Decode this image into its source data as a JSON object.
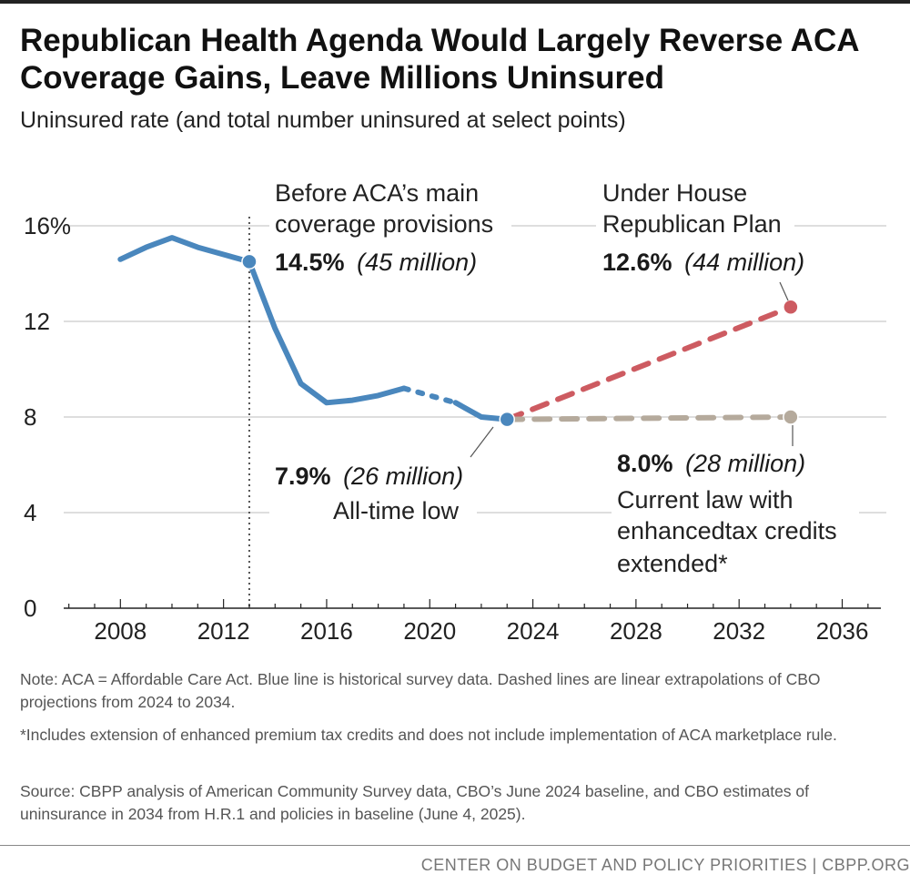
{
  "chart_data": {
    "type": "line",
    "title": "Republican Health Agenda Would Largely Reverse ACA Coverage Gains, Leave Millions Uninsured",
    "subtitle": "Uninsured rate (and total number uninsured at select points)",
    "xlabel": "",
    "ylabel": "",
    "xlim": [
      2005.8,
      2037.5
    ],
    "ylim": [
      0,
      16
    ],
    "yticks": [
      0,
      4,
      8,
      12,
      16
    ],
    "ytick_labels": [
      "0",
      "4",
      "8",
      "12",
      "16%"
    ],
    "xticks_labeled": [
      2008,
      2012,
      2016,
      2020,
      2024,
      2028,
      2032,
      2036
    ],
    "grid": true,
    "colors": {
      "historical": "#4a87bd",
      "house_plan": "#cd5b61",
      "current_law": "#b5aa9c",
      "grid": "#bdbdbd",
      "reference": "#555555"
    },
    "series": [
      {
        "name": "Historical survey data",
        "style": "solid",
        "x": [
          2008,
          2009,
          2010,
          2011,
          2012,
          2013,
          2014,
          2015,
          2016,
          2017,
          2018,
          2019
        ],
        "y": [
          14.6,
          15.1,
          15.5,
          15.1,
          14.8,
          14.5,
          11.7,
          9.4,
          8.6,
          8.7,
          8.9,
          9.2
        ]
      },
      {
        "name": "Historical survey data (gap year)",
        "style": "dotted",
        "x": [
          2019,
          2021
        ],
        "y": [
          9.2,
          8.6
        ]
      },
      {
        "name": "Historical survey data (recent)",
        "style": "solid",
        "x": [
          2021,
          2022,
          2023
        ],
        "y": [
          8.6,
          8.0,
          7.9
        ]
      },
      {
        "name": "Under House Republican Plan",
        "style": "dashed",
        "x": [
          2023,
          2034
        ],
        "y": [
          7.9,
          12.6
        ]
      },
      {
        "name": "Current law with enhanced tax credits extended",
        "style": "dashed",
        "x": [
          2023,
          2034
        ],
        "y": [
          7.9,
          8.0
        ]
      }
    ],
    "reference_line": {
      "x": 2013,
      "style": "dotted"
    },
    "annotations": {
      "aca": {
        "line1": "Before ACA’s main",
        "line2": "coverage provisions",
        "value": "14.5%",
        "count": "(45 million)"
      },
      "house": {
        "line1": "Under House",
        "line2": "Republican Plan",
        "value": "12.6%",
        "count": "(44 million)"
      },
      "low": {
        "value": "7.9%",
        "count": "(26 million)",
        "label": "All-time low"
      },
      "current": {
        "value": "8.0%",
        "count": "(28 million)",
        "line1": "Current law with",
        "line2": "enhancedtax credits",
        "line3": "extended*"
      }
    }
  },
  "notes": {
    "note1": "Note: ACA = Affordable Care Act. Blue line is historical survey data. Dashed lines are linear extrapolations of CBO projections from 2024 to 2034.",
    "note2": "*Includes extension of enhanced premium tax credits and does not include implementation of ACA marketplace rule.",
    "note3": "Source: CBPP analysis of American Community Survey data, CBO’s June 2024 baseline, and CBO estimates of uninsurance in 2034 from H.R.1 and policies in baseline (June 4, 2025)."
  },
  "footer": "CENTER ON BUDGET AND POLICY PRIORITIES | CBPP.ORG"
}
